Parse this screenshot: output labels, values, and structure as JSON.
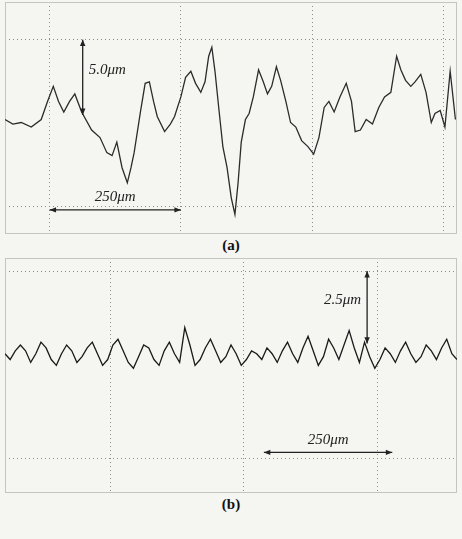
{
  "chart_data": [
    {
      "type": "line",
      "title": "(a)",
      "color": "#2b2b2b",
      "grid": true,
      "tick_labels": false,
      "x": [
        0,
        15,
        31,
        50,
        69,
        81,
        92,
        102,
        112,
        123,
        133,
        146,
        165,
        181,
        194,
        204,
        213,
        223,
        233,
        240,
        246,
        258,
        267,
        275,
        283,
        290,
        304,
        315,
        323,
        335,
        344,
        354,
        363,
        373,
        381,
        388,
        394,
        400,
        408,
        415,
        423,
        431,
        438,
        444,
        450,
        458,
        465,
        473,
        483,
        492,
        500,
        508,
        517,
        525,
        535,
        544,
        554,
        565,
        577,
        588,
        598,
        608,
        617,
        627,
        638,
        650,
        660,
        667,
        677,
        688,
        700,
        712,
        723,
        735,
        746,
        754,
        763,
        773,
        781,
        792,
        802,
        812,
        819,
        829,
        838,
        848,
        858
      ],
      "values": [
        -0.3,
        -0.6,
        -0.5,
        -0.8,
        -0.3,
        0.9,
        1.9,
        0.9,
        0.2,
        0.9,
        1.4,
        0.2,
        -1.0,
        -1.5,
        -2.5,
        -2.7,
        -1.8,
        -3.5,
        -4.5,
        -3.5,
        -2.5,
        0.2,
        2.1,
        2.2,
        0.9,
        -0.1,
        -1.1,
        -0.6,
        -0.1,
        1.2,
        2.5,
        2.9,
        2.1,
        1.5,
        2.2,
        3.9,
        4.5,
        2.9,
        0.2,
        -2.1,
        -3.5,
        -5.5,
        -6.6,
        -4.5,
        -1.8,
        -0.3,
        0.1,
        1.2,
        3.0,
        2.2,
        1.4,
        1.9,
        3.2,
        2.3,
        0.9,
        -0.5,
        -0.8,
        -1.7,
        -2.1,
        -2.6,
        -1.5,
        0.5,
        0.9,
        0.2,
        1.2,
        2.1,
        0.9,
        -1.1,
        -1.0,
        -0.3,
        -0.6,
        0.5,
        1.2,
        1.5,
        3.9,
        3.0,
        2.3,
        1.9,
        2.2,
        2.7,
        1.5,
        -0.5,
        0.1,
        0.3,
        -0.8,
        2.9,
        -0.3
      ],
      "xlim": [
        0,
        861
      ],
      "xticks": [
        85,
        335,
        585,
        835
      ],
      "ylim": [
        -7.9,
        7.5
      ],
      "yticks": [
        -6.1,
        5
      ],
      "scale_bars": [
        {
          "label": "5.0μm",
          "axis": "y",
          "from": 0,
          "to": 5,
          "at": 148
        },
        {
          "label": "250μm",
          "axis": "x",
          "from": 85,
          "to": 335,
          "at": -6.3
        }
      ]
    },
    {
      "type": "line",
      "title": "(b)",
      "color": "#1a1a1a",
      "grid": true,
      "tick_labels": false,
      "x": [
        0,
        10,
        20,
        30,
        40,
        50,
        60,
        70,
        80,
        90,
        100,
        110,
        120,
        130,
        140,
        150,
        160,
        170,
        180,
        190,
        200,
        210,
        220,
        230,
        240,
        250,
        260,
        270,
        280,
        290,
        300,
        310,
        320,
        330,
        340,
        350,
        360,
        370,
        380,
        390,
        400,
        410,
        420,
        430,
        440,
        450,
        460,
        470,
        480,
        490,
        500,
        510,
        520,
        530,
        540,
        550,
        560,
        570,
        580,
        590,
        600,
        610,
        620,
        630,
        640,
        650,
        660,
        670,
        680,
        690,
        700,
        710,
        720,
        730,
        740,
        750,
        760,
        770,
        780,
        790,
        800,
        810,
        820,
        830,
        840,
        850,
        860,
        870,
        880
      ],
      "values": [
        0.0,
        -0.2,
        0.1,
        0.3,
        0.1,
        -0.3,
        0.0,
        0.4,
        0.2,
        -0.2,
        -0.4,
        0.0,
        0.3,
        0.1,
        -0.3,
        -0.1,
        0.2,
        0.4,
        0.0,
        -0.4,
        -0.2,
        0.3,
        0.5,
        0.1,
        -0.3,
        -0.5,
        -0.1,
        0.3,
        0.2,
        -0.2,
        -0.4,
        0.1,
        0.4,
        0.0,
        -0.3,
        0.9,
        0.3,
        -0.4,
        -0.2,
        0.2,
        0.5,
        0.1,
        -0.3,
        -0.1,
        0.3,
        0.0,
        -0.4,
        -0.2,
        0.1,
        0.0,
        -0.2,
        0.2,
        0.0,
        -0.3,
        0.1,
        0.4,
        0.0,
        -0.3,
        0.2,
        0.6,
        0.1,
        -0.4,
        -0.1,
        0.5,
        0.2,
        -0.2,
        0.3,
        0.8,
        0.2,
        -0.3,
        0.4,
        -0.1,
        -0.5,
        -0.2,
        0.2,
        0.0,
        -0.3,
        0.1,
        0.4,
        0.0,
        -0.3,
        -0.1,
        0.3,
        0.1,
        -0.2,
        0.2,
        0.5,
        0.0,
        -0.2
      ],
      "xlim": [
        0,
        880
      ],
      "xticks": [
        205,
        465,
        725
      ],
      "ylim": [
        -4.8,
        3.3
      ],
      "yticks": [
        -3.6,
        2.85
      ],
      "scale_bars": [
        {
          "label": "2.5μm",
          "axis": "y",
          "from": 0.35,
          "to": 2.85,
          "at": 705
        },
        {
          "label": "250μm",
          "axis": "x",
          "from": 504,
          "to": 754,
          "at": -3.4
        }
      ]
    }
  ]
}
